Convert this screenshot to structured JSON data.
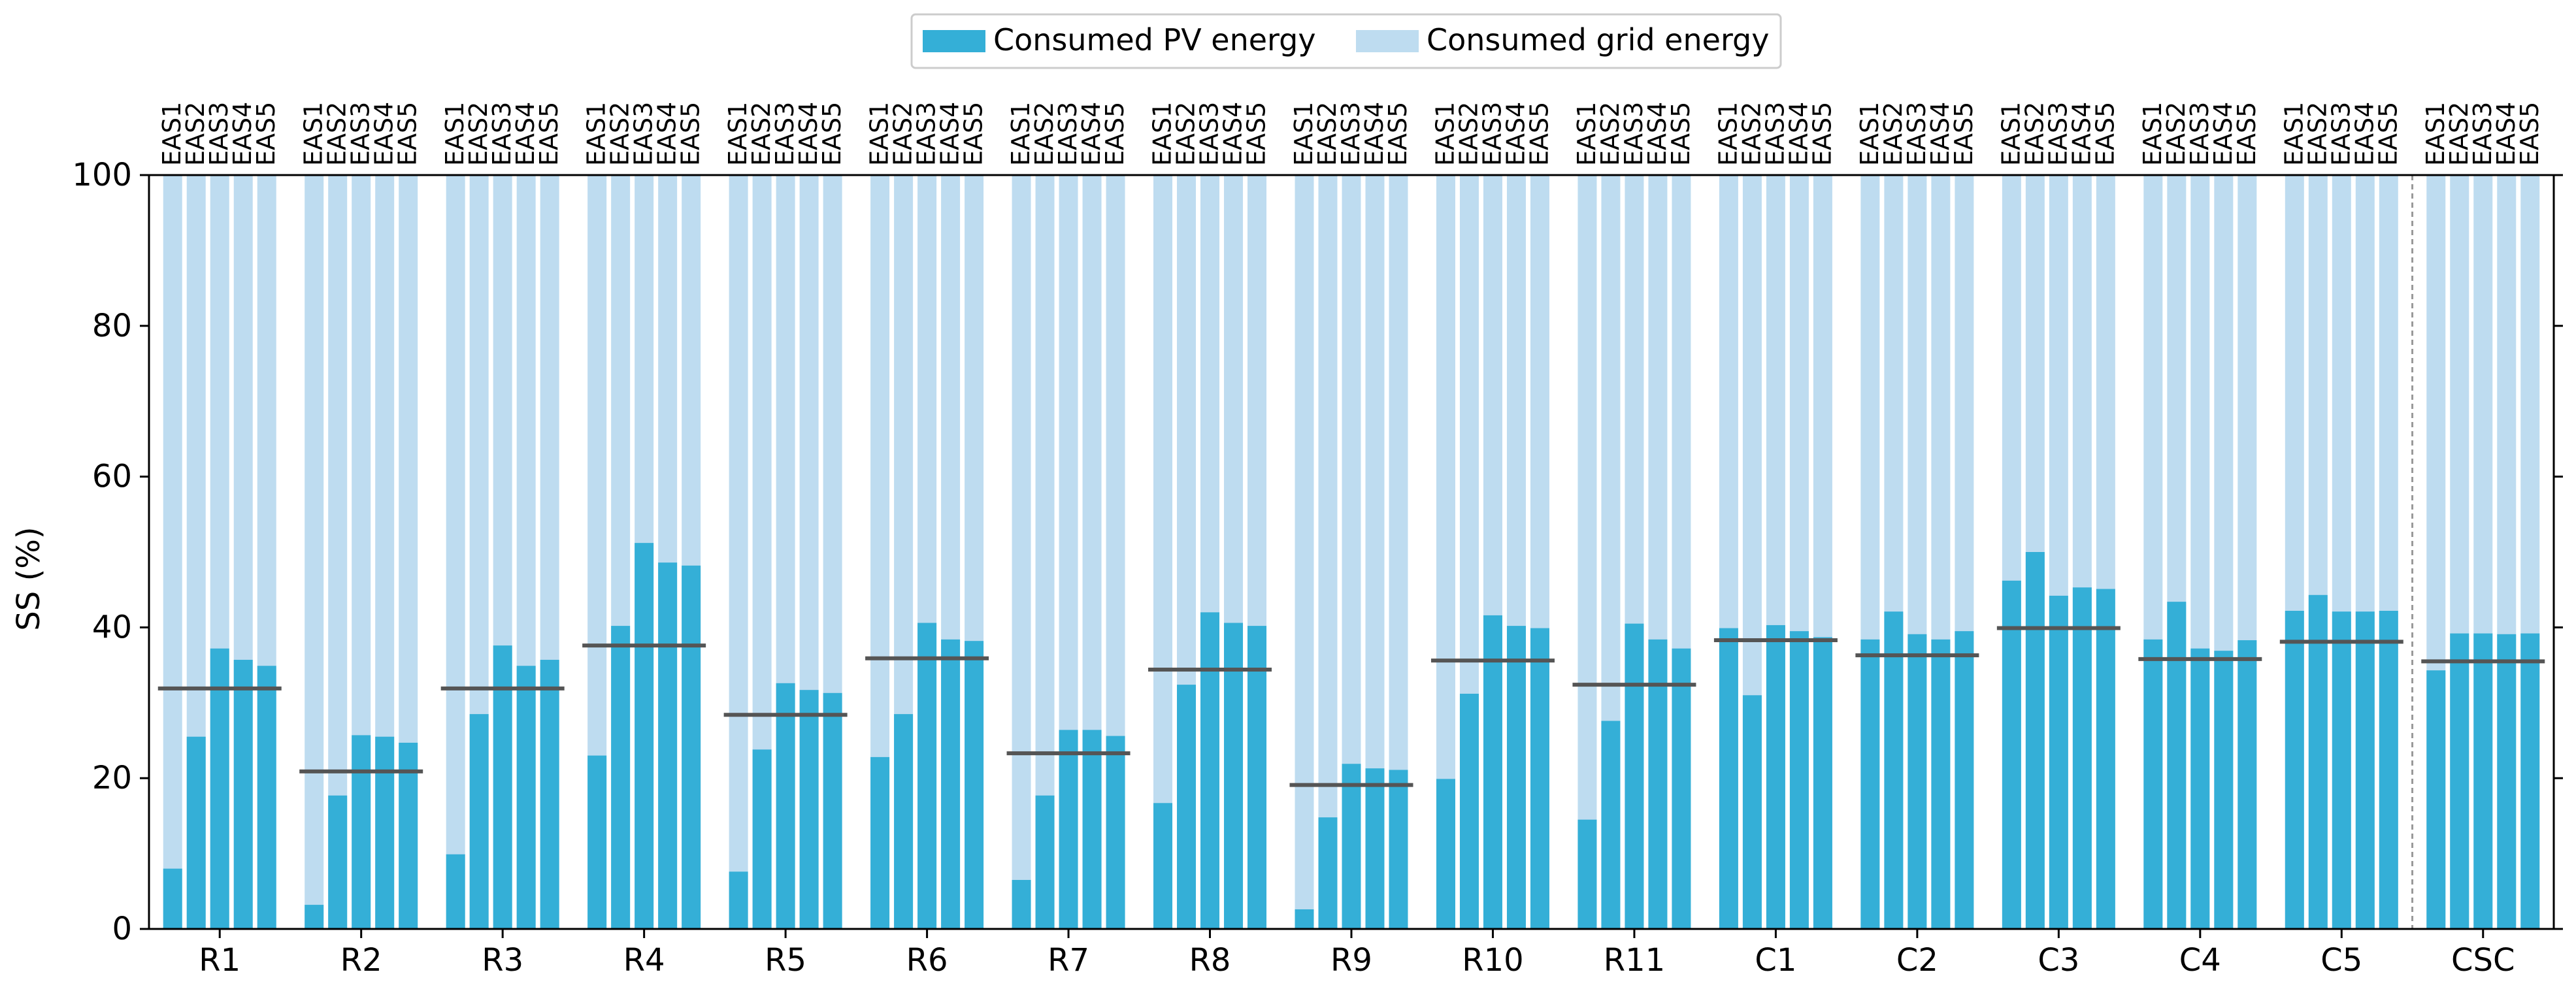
{
  "chart_data": {
    "type": "bar",
    "subtype": "stacked-grouped",
    "ylabel": "SS (%)",
    "ylim": [
      0,
      100
    ],
    "yticks": [
      0,
      20,
      40,
      60,
      80,
      100
    ],
    "bar_labels": [
      "EAS1",
      "EAS2",
      "EAS3",
      "EAS4",
      "EAS5"
    ],
    "legend": {
      "position": "top-center",
      "entries": [
        {
          "label": "Consumed PV energy",
          "color": "#34afd7"
        },
        {
          "label": "Consumed grid energy",
          "color": "#bedcf0"
        }
      ]
    },
    "colors": {
      "pv": "#34afd7",
      "grid": "#bedcf0",
      "average_line": "#555555"
    },
    "total_value": 100,
    "groups": [
      {
        "name": "R1",
        "pv": [
          8,
          25.5,
          37.2,
          35.7,
          34.9
        ],
        "average": 31.9
      },
      {
        "name": "R2",
        "pv": [
          3.2,
          17.7,
          25.7,
          25.5,
          24.7
        ],
        "average": 20.9
      },
      {
        "name": "R3",
        "pv": [
          9.9,
          28.5,
          37.6,
          34.9,
          35.7
        ],
        "average": 31.9
      },
      {
        "name": "R4",
        "pv": [
          23,
          40.2,
          51.2,
          48.6,
          48.2
        ],
        "average": 37.6
      },
      {
        "name": "R5",
        "pv": [
          7.6,
          23.8,
          32.6,
          31.7,
          31.3
        ],
        "average": 28.4
      },
      {
        "name": "R6",
        "pv": [
          22.8,
          28.5,
          40.6,
          38.4,
          38.2
        ],
        "average": 35.9
      },
      {
        "name": "R7",
        "pv": [
          6.5,
          17.7,
          26.4,
          26.4,
          25.6
        ],
        "average": 23.3
      },
      {
        "name": "R8",
        "pv": [
          16.7,
          32.4,
          42,
          40.6,
          40.2
        ],
        "average": 34.4
      },
      {
        "name": "R9",
        "pv": [
          2.6,
          14.8,
          21.9,
          21.3,
          21.1
        ],
        "average": 19.1
      },
      {
        "name": "R10",
        "pv": [
          19.9,
          31.2,
          41.6,
          40.2,
          39.9
        ],
        "average": 35.6
      },
      {
        "name": "R11",
        "pv": [
          14.5,
          27.6,
          40.5,
          38.4,
          37.2
        ],
        "average": 32.4
      },
      {
        "name": "C1",
        "pv": [
          39.9,
          31,
          40.3,
          39.5,
          38.7
        ],
        "average": 38.3
      },
      {
        "name": "C2",
        "pv": [
          38.4,
          42.1,
          39.1,
          38.4,
          39.5
        ],
        "average": 36.3
      },
      {
        "name": "C3",
        "pv": [
          46.2,
          50,
          44.2,
          45.3,
          45.1
        ],
        "average": 39.9
      },
      {
        "name": "C4",
        "pv": [
          38.4,
          43.4,
          37.2,
          36.9,
          38.3
        ],
        "average": 35.8
      },
      {
        "name": "C5",
        "pv": [
          42.2,
          44.3,
          42.1,
          42.1,
          42.2
        ],
        "average": 38.1
      },
      {
        "name": "CSC",
        "pv": [
          34.3,
          39.2,
          39.2,
          39.1,
          39.2
        ],
        "average": 35.5
      }
    ],
    "separator_before": "CSC"
  }
}
